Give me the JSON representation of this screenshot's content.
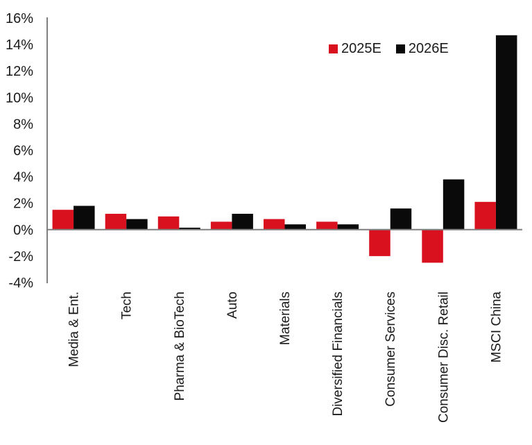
{
  "chart_data": {
    "type": "bar",
    "categories": [
      "Media & Ent.",
      "Tech",
      "Pharma & BioTech",
      "Auto",
      "Materials",
      "Diversified Financials",
      "Consumer Services",
      "Consumer Disc. Retail",
      "MSCI China"
    ],
    "series": [
      {
        "name": "2025E",
        "color": "#d9101e",
        "values": [
          1.5,
          1.2,
          1.0,
          0.6,
          0.8,
          0.6,
          -2.0,
          -2.5,
          2.1
        ]
      },
      {
        "name": "2026E",
        "color": "#0a0a0a",
        "values": [
          1.8,
          0.8,
          0.15,
          1.2,
          0.4,
          0.4,
          1.6,
          3.8,
          14.7
        ]
      }
    ],
    "title": "",
    "xlabel": "",
    "ylabel": "",
    "ylim": [
      -4,
      16
    ],
    "yticks": [
      16,
      14,
      12,
      10,
      8,
      6,
      4,
      2,
      0,
      -2,
      -4
    ],
    "ytick_suffix": "%",
    "grid": false,
    "legend_position": "top-right",
    "axis_color": "#7f7f7f",
    "text_color": "#1a1a1a",
    "background_color": "#ffffff"
  }
}
